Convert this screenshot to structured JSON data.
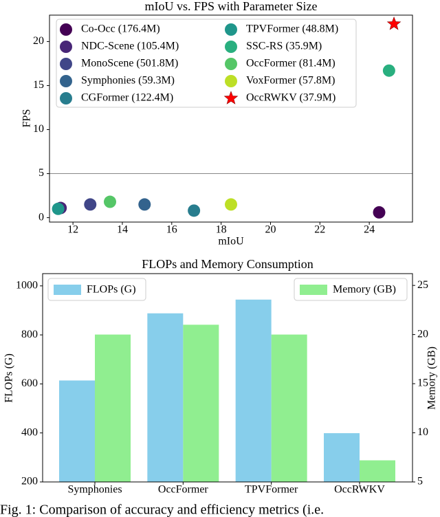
{
  "chart_data": [
    {
      "type": "scatter",
      "title": "mIoU vs. FPS with Parameter Size",
      "xlabel": "mIoU",
      "ylabel": "FPS",
      "xlim": [
        11.05,
        25.75
      ],
      "xticks": [
        12,
        14,
        16,
        18,
        20,
        22,
        24
      ],
      "ylim": [
        -0.5,
        23
      ],
      "yticks": [
        0,
        5,
        10,
        15,
        20
      ],
      "hline": 5,
      "legend": "upper left",
      "series": [
        {
          "name": "Co-Occ (176.4M)",
          "color": "#440154",
          "marker": "circle",
          "x": [
            24.4
          ],
          "values": [
            0.6
          ]
        },
        {
          "name": "NDC-Scene (105.4M)",
          "color": "#482677",
          "marker": "circle",
          "x": [
            11.5
          ],
          "values": [
            1.1
          ]
        },
        {
          "name": "MonoScene (501.8M)",
          "color": "#404688",
          "marker": "circle",
          "x": [
            12.7
          ],
          "values": [
            1.5
          ]
        },
        {
          "name": "Symphonies (59.3M)",
          "color": "#33638d",
          "marker": "circle",
          "x": [
            14.9
          ],
          "values": [
            1.5
          ]
        },
        {
          "name": "CGFormer (122.4M)",
          "color": "#287d8e",
          "marker": "circle",
          "x": [
            16.9
          ],
          "values": [
            0.8
          ]
        },
        {
          "name": "TPVFormer (48.8M)",
          "color": "#1f968b",
          "marker": "circle",
          "x": [
            11.4
          ],
          "values": [
            1.0
          ]
        },
        {
          "name": "SSC-RS (35.9M)",
          "color": "#29af7f",
          "marker": "circle",
          "x": [
            24.8
          ],
          "values": [
            16.7
          ]
        },
        {
          "name": "OccFormer (81.4M)",
          "color": "#55c667",
          "marker": "circle",
          "x": [
            13.5
          ],
          "values": [
            1.8
          ]
        },
        {
          "name": "VoxFormer (57.8M)",
          "color": "#bddf26",
          "marker": "circle",
          "x": [
            18.4
          ],
          "values": [
            1.5
          ]
        },
        {
          "name": "OccRWKV (37.9M)",
          "color": "#ff0000",
          "marker": "star",
          "x": [
            25.0
          ],
          "values": [
            22.0
          ]
        }
      ]
    },
    {
      "type": "bar",
      "title": "FLOPs and Memory Consumption",
      "categories": [
        "Symphonies",
        "OccFormer",
        "TPVFormer",
        "OccRWKV"
      ],
      "ylabel": "FLOPs (G)",
      "y2label": "Memory (GB)",
      "y_color": "blue",
      "y2_color": "green",
      "ylim": [
        200,
        1050
      ],
      "yticks": [
        200,
        400,
        600,
        800,
        1000
      ],
      "y2lim": [
        5,
        26.2
      ],
      "y2ticks": [
        5,
        10,
        15,
        20,
        25
      ],
      "series": [
        {
          "name": "FLOPs (G)",
          "color": "#87ceeb",
          "values": [
            614,
            888,
            944,
            399
          ],
          "legend": "upper left"
        },
        {
          "name": "Memory (GB)",
          "color": "#90ee90",
          "axis": "y2",
          "values": [
            20,
            21,
            20,
            7.2
          ],
          "legend": "upper right"
        }
      ]
    }
  ],
  "caption": "Fig. 1: Comparison of accuracy and efficiency metrics (i.e."
}
